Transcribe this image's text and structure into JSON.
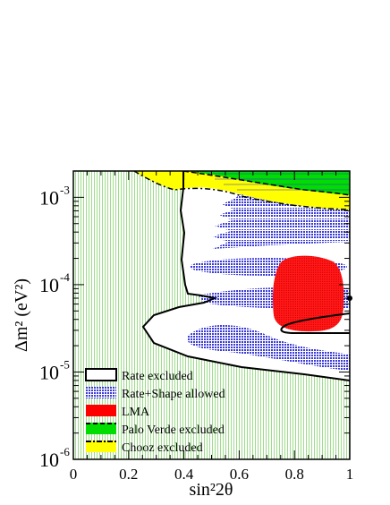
{
  "chart_data": {
    "type": "area",
    "title": "",
    "xlabel": "sin²2θ",
    "ylabel": "Δm² (eV²)",
    "xlim": [
      0,
      1
    ],
    "ylim": [
      1e-06,
      0.002
    ],
    "yscale": "log",
    "x_ticks": [
      "0",
      "0.2",
      "0.4",
      "0.6",
      "0.8",
      "1"
    ],
    "y_ticks": [
      {
        "base": "10",
        "exp": "-3"
      },
      {
        "base": "10",
        "exp": "-4"
      },
      {
        "base": "10",
        "exp": "-5"
      },
      {
        "base": "10",
        "exp": "-6"
      }
    ],
    "legend_position": "bottom-left",
    "legend": [
      {
        "label": "Rate excluded",
        "style": "outline",
        "color": "#000000"
      },
      {
        "label": "Rate+Shape allowed",
        "style": "hatched",
        "color": "#1f1fcc"
      },
      {
        "label": "LMA",
        "style": "solid",
        "color": "#ff0000"
      },
      {
        "label": "Palo Verde excluded",
        "style": "solid-dash",
        "color": "#00dd00"
      },
      {
        "label": "Chooz excluded",
        "style": "solid-dashdot",
        "color": "#ffff00"
      }
    ],
    "colors": {
      "rate_excluded_fill": "#dff2d8",
      "rate_shape_allowed": "#3333cc",
      "lma": "#ff0000",
      "palo_verde": "#00dd00",
      "chooz": "#ffff00"
    },
    "best_fit_point": {
      "x": 1.0,
      "y": 7e-05
    },
    "series": [
      {
        "name": "Rate excluded",
        "boundary_y_at_x1": 6.5e-05,
        "turning_point": {
          "x": 0.27,
          "y": 3.2e-05
        }
      },
      {
        "name": "LMA",
        "x": [
          0.72,
          0.98
        ],
        "y": [
          5e-05,
          0.0002
        ]
      }
    ]
  }
}
